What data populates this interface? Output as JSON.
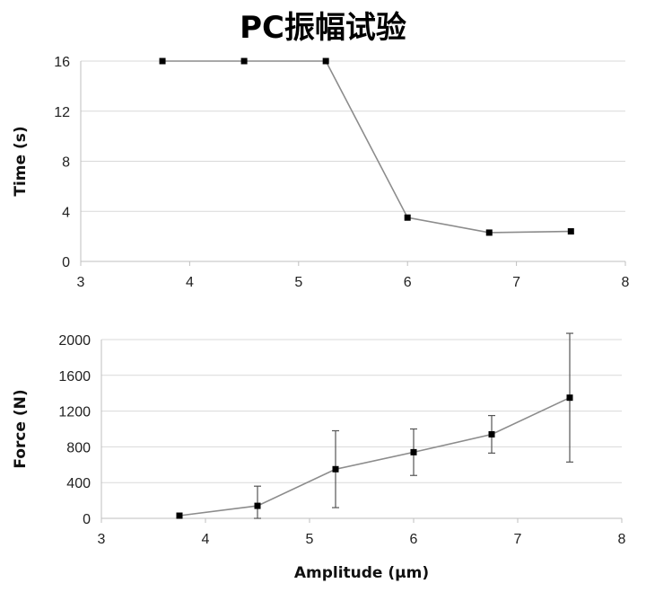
{
  "title": "PC振幅试验",
  "chart_data": [
    {
      "type": "line",
      "x": [
        3.75,
        4.5,
        5.25,
        6.0,
        6.75,
        7.5
      ],
      "y": [
        16,
        16,
        16,
        3.5,
        2.3,
        2.4
      ],
      "xlim": [
        3,
        8
      ],
      "ylim": [
        0,
        16
      ],
      "xticks": [
        3,
        4,
        5,
        6,
        7,
        8
      ],
      "yticks": [
        0,
        4,
        8,
        12,
        16
      ],
      "xlabel": "",
      "ylabel": "Time (s)",
      "grid": "horizontal",
      "colors": {
        "line": "#8c8c8c",
        "marker": "#000000",
        "grid": "#d9d9d9"
      }
    },
    {
      "type": "line",
      "x": [
        3.75,
        4.5,
        5.25,
        6.0,
        6.75,
        7.5
      ],
      "y": [
        30,
        140,
        550,
        740,
        940,
        1350
      ],
      "yerr": [
        0,
        220,
        430,
        260,
        210,
        720
      ],
      "xlim": [
        3,
        8
      ],
      "ylim": [
        0,
        2000
      ],
      "xticks": [
        3,
        4,
        5,
        6,
        7,
        8
      ],
      "yticks": [
        0,
        400,
        800,
        1200,
        1600,
        2000
      ],
      "xlabel": "Amplitude (μm)",
      "ylabel": "Force (N)",
      "grid": "horizontal",
      "colors": {
        "line": "#8c8c8c",
        "marker": "#000000",
        "grid": "#d9d9d9"
      }
    }
  ]
}
